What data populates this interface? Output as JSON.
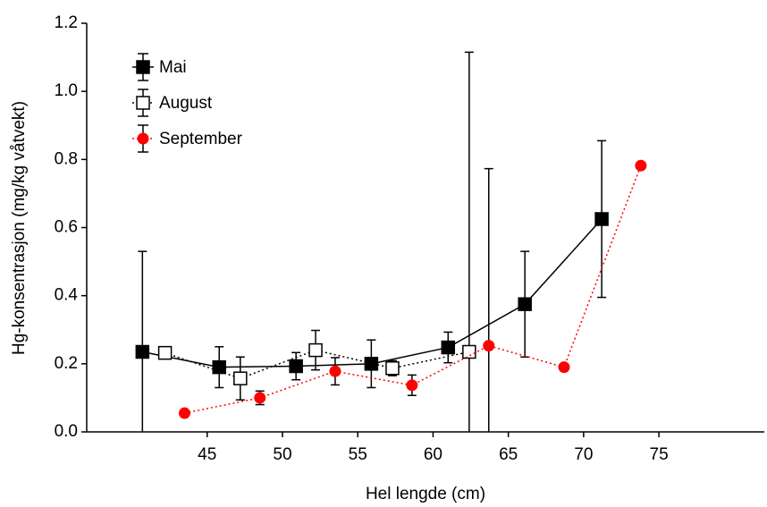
{
  "chart_data": {
    "type": "scatter",
    "x_label": "Hel lengde (cm)",
    "y_label": "Hg-konsentrasjon (mg/kg våtvekt)",
    "xlim": [
      37,
      82
    ],
    "xticks": [
      45,
      50,
      55,
      60,
      65,
      70,
      75
    ],
    "ylim": [
      0,
      1.2
    ],
    "yticks": [
      {
        "value": 0,
        "label": "0.0"
      },
      0.2,
      0.4,
      0.6,
      0.8,
      {
        "value": 1,
        "label": "1.0"
      },
      1.2
    ],
    "legend": "upper left",
    "series": [
      {
        "name": "Mai",
        "color": "#000000",
        "marker": "square-filled",
        "line": "solid",
        "x": [
          40.7,
          45.8,
          50.9,
          55.9,
          61.0,
          66.1,
          71.2
        ],
        "values": [
          0.235,
          0.19,
          0.193,
          0.2,
          0.248,
          0.375,
          0.625
        ],
        "errors": [
          0.295,
          0.06,
          0.04,
          0.07,
          0.045,
          0.155,
          0.23
        ]
      },
      {
        "name": "August",
        "color": "#000000",
        "marker": "square-open",
        "line": "dotted",
        "x": [
          42.2,
          47.2,
          52.2,
          57.3,
          62.4
        ],
        "values": [
          0.232,
          0.157,
          0.24,
          0.187,
          0.235
        ],
        "errors": [
          0.005,
          0.063,
          0.058,
          0.022,
          0.88
        ]
      },
      {
        "name": "September",
        "color": "#ff0000",
        "marker": "circle",
        "line": "dotted",
        "x": [
          43.5,
          48.5,
          53.5,
          58.6,
          63.7,
          68.7,
          73.8
        ],
        "values": [
          0.055,
          0.1,
          0.178,
          0.137,
          0.253,
          0.19,
          0.782
        ],
        "errors": [
          0,
          0.02,
          0.04,
          0.03,
          0.52,
          0,
          0
        ]
      }
    ]
  }
}
